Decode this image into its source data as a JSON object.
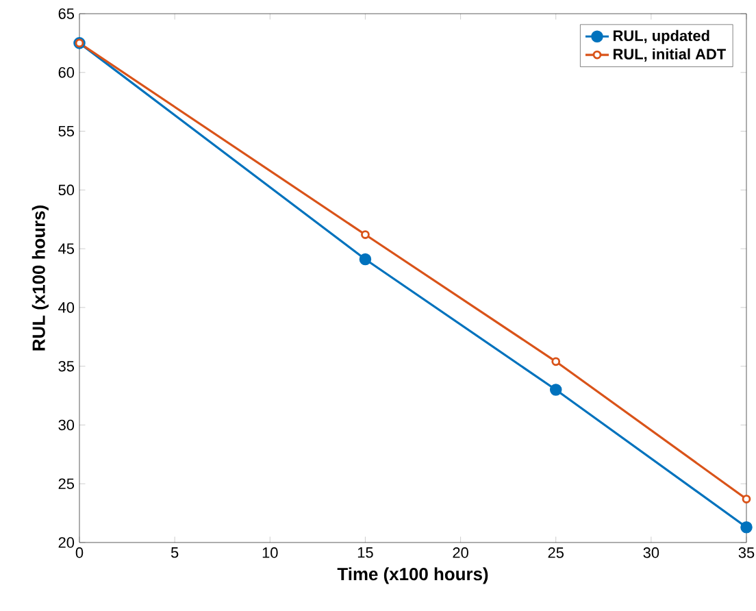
{
  "chart_data": {
    "type": "line",
    "xlabel": "Time (x100 hours)",
    "ylabel": "RUL (x100 hours)",
    "x": [
      0,
      15,
      25,
      35
    ],
    "series": [
      {
        "name": "RUL, updated",
        "color": "#0072bd",
        "values": [
          62.5,
          44.1,
          33.0,
          21.3
        ]
      },
      {
        "name": "RUL, initial ADT",
        "color": "#d95319",
        "values": [
          62.5,
          46.2,
          35.4,
          23.7
        ]
      }
    ],
    "xlim": [
      0,
      35
    ],
    "xticks": [
      0,
      5,
      10,
      15,
      20,
      25,
      30,
      35
    ],
    "ylim": [
      20,
      65
    ],
    "yticks": [
      20,
      25,
      30,
      35,
      40,
      45,
      50,
      55,
      60,
      65
    ],
    "legend": "top right",
    "marker": "circle",
    "line_style": "solid",
    "grid": false
  }
}
